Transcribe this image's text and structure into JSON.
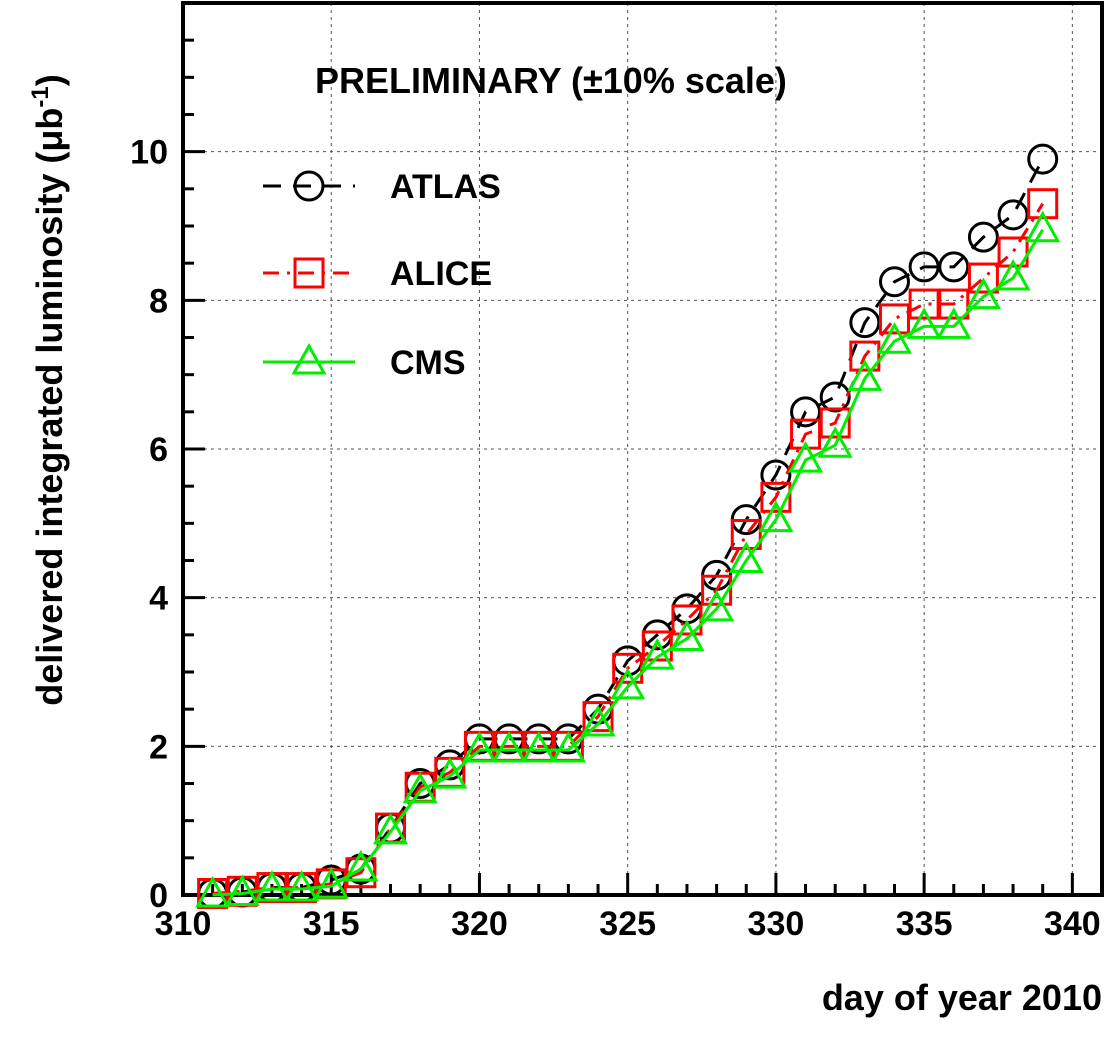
{
  "chart_data": {
    "type": "line",
    "annotation": "PRELIMINARY (±10% scale)",
    "xlabel": "day of year 2010",
    "ylabel_main": "delivered integrated luminosity (μb",
    "ylabel_sup": "-1",
    "ylabel_close": ")",
    "xlim": [
      310,
      341
    ],
    "ylim": [
      0,
      12
    ],
    "xticks": [
      310,
      315,
      320,
      325,
      330,
      335,
      340
    ],
    "yticks": [
      0,
      2,
      4,
      6,
      8,
      10
    ],
    "xtick_labels": [
      "310",
      "315",
      "320",
      "325",
      "330",
      "335",
      "340"
    ],
    "ytick_labels": [
      "0",
      "2",
      "4",
      "6",
      "8",
      "10"
    ],
    "grid": true,
    "legend_position": "top-left",
    "x": [
      311,
      312,
      313,
      314,
      315,
      316,
      317,
      318,
      319,
      320,
      321,
      322,
      323,
      324,
      325,
      326,
      327,
      328,
      329,
      330,
      331,
      332,
      333,
      334,
      335,
      336,
      337,
      338,
      339
    ],
    "series": [
      {
        "name": "ATLAS",
        "color": "#000000",
        "marker": "circle",
        "line": "dashed",
        "values": [
          0.02,
          0.04,
          0.1,
          0.1,
          0.2,
          0.35,
          0.9,
          1.5,
          1.75,
          2.1,
          2.1,
          2.1,
          2.1,
          2.5,
          3.15,
          3.5,
          3.85,
          4.3,
          5.05,
          5.65,
          6.5,
          6.7,
          7.7,
          8.25,
          8.45,
          8.45,
          8.85,
          9.15,
          9.9
        ]
      },
      {
        "name": "ALICE",
        "color": "#ff0000",
        "marker": "square",
        "line": "dash-dot",
        "values": [
          0.02,
          0.05,
          0.1,
          0.1,
          0.15,
          0.3,
          0.9,
          1.45,
          1.65,
          2.0,
          2.0,
          2.0,
          2.0,
          2.4,
          3.05,
          3.35,
          3.7,
          4.1,
          4.85,
          5.35,
          6.2,
          6.35,
          7.25,
          7.75,
          7.95,
          7.95,
          8.3,
          8.65,
          9.3
        ]
      },
      {
        "name": "CMS",
        "color": "#00ee00",
        "marker": "triangle",
        "line": "solid",
        "values": [
          0.0,
          0.02,
          0.08,
          0.08,
          0.12,
          0.35,
          0.85,
          1.4,
          1.6,
          1.95,
          1.95,
          1.95,
          1.95,
          2.3,
          2.8,
          3.2,
          3.45,
          3.85,
          4.5,
          5.05,
          5.85,
          6.05,
          6.95,
          7.45,
          7.65,
          7.65,
          8.05,
          8.3,
          8.95
        ]
      }
    ]
  }
}
